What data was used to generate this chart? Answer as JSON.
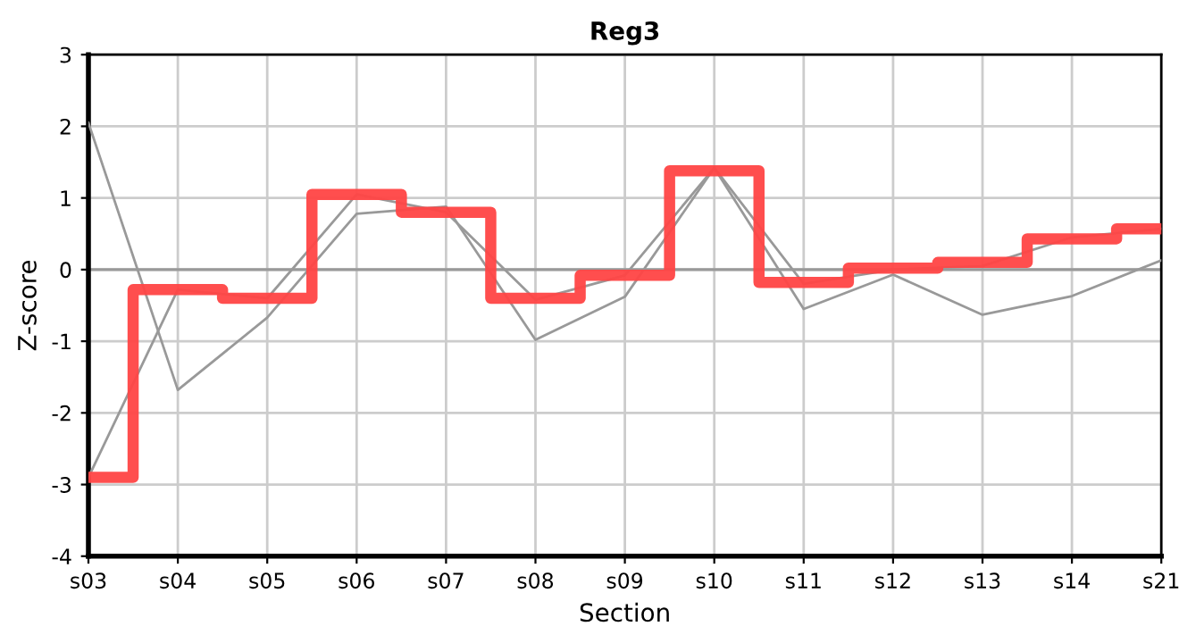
{
  "chart_data": {
    "type": "line",
    "title": "Reg3",
    "xlabel": "Section",
    "ylabel": "Z-score",
    "categories": [
      "s03",
      "s04",
      "s05",
      "s06",
      "s07",
      "s08",
      "s09",
      "s10",
      "s11",
      "s12",
      "s13",
      "s14",
      "s21"
    ],
    "series": [
      {
        "color": "#999999",
        "values": [
          2.05,
          -1.68,
          -0.67,
          0.78,
          0.88,
          -0.98,
          -0.38,
          1.42,
          -0.55,
          -0.07,
          -0.63,
          -0.37,
          0.13
        ]
      },
      {
        "color": "#999999",
        "values": [
          -2.9,
          -0.28,
          -0.4,
          1.05,
          0.8,
          -0.42,
          -0.08,
          1.42,
          -0.2,
          0.0,
          0.05,
          0.45,
          0.57
        ]
      },
      {
        "type": "step",
        "color": "#ff4444",
        "values": [
          -2.9,
          -0.28,
          -0.4,
          1.05,
          0.8,
          -0.4,
          -0.08,
          1.38,
          -0.18,
          0.02,
          0.1,
          0.43,
          0.57
        ]
      }
    ],
    "ylim": [
      -4,
      3
    ],
    "yticks": [
      -4,
      -3,
      -2,
      -1,
      0,
      1,
      2,
      3
    ],
    "grid": true,
    "ref_lines": [
      {
        "axis": "y",
        "value": 0,
        "color": "#999999"
      }
    ]
  }
}
